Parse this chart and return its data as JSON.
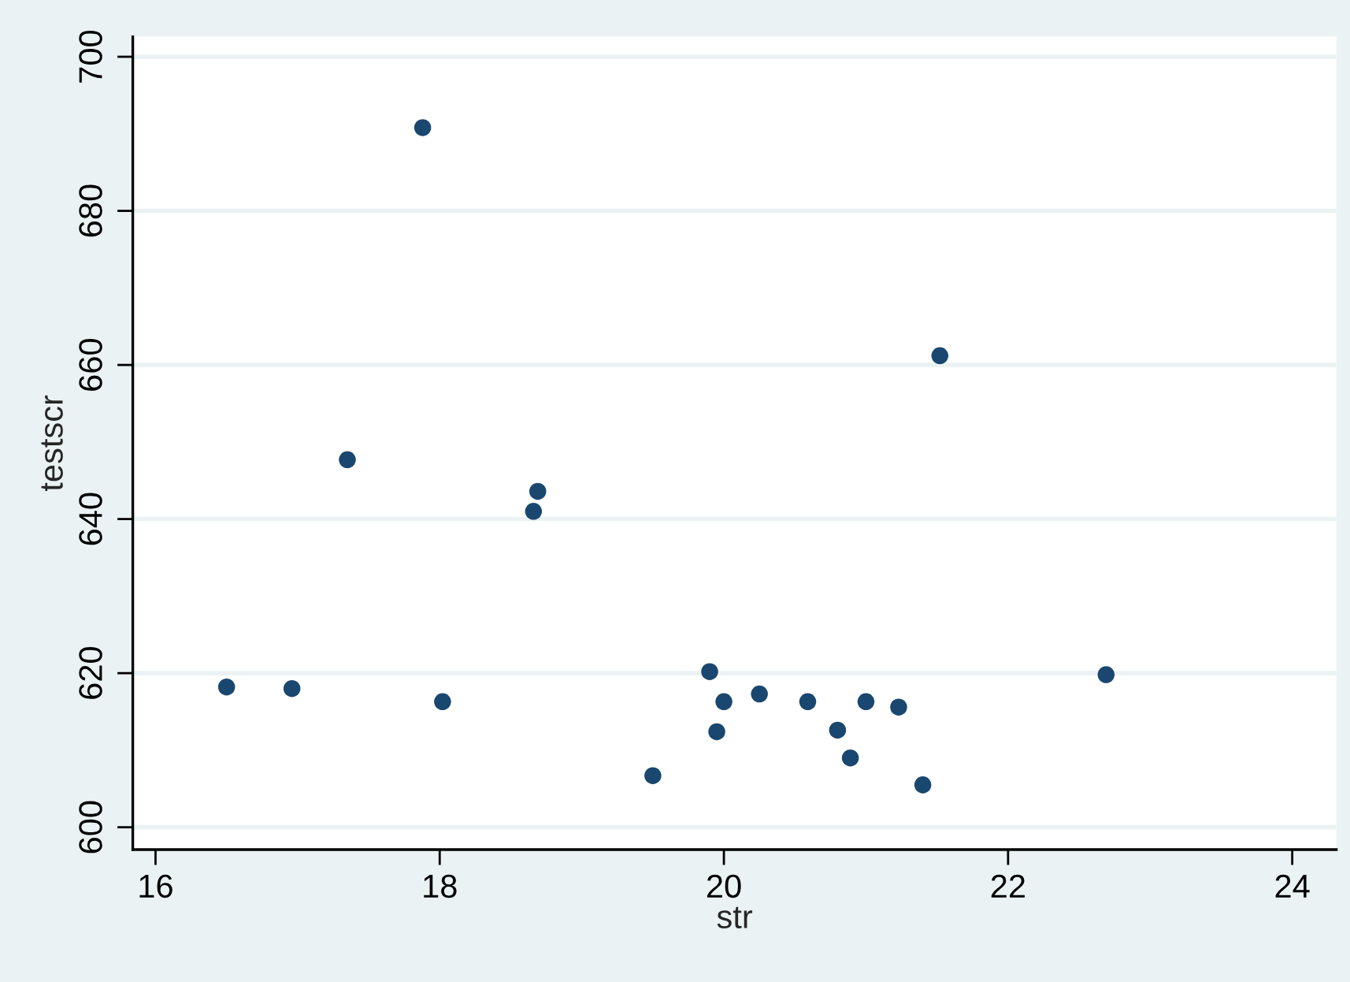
{
  "chart_data": {
    "type": "scatter",
    "xlabel": "str",
    "ylabel": "testscr",
    "x": [
      16.5,
      16.96,
      17.35,
      17.88,
      18.02,
      18.66,
      18.69,
      19.5,
      19.9,
      19.95,
      20.0,
      20.25,
      20.59,
      20.8,
      20.89,
      21.0,
      21.23,
      21.4,
      21.52,
      22.69
    ],
    "values": [
      618.2,
      618.0,
      647.7,
      690.8,
      616.3,
      641.0,
      643.6,
      606.7,
      620.2,
      612.4,
      616.3,
      617.3,
      616.3,
      612.6,
      609.0,
      616.3,
      615.6,
      605.5,
      661.2,
      619.8
    ],
    "color": "#1a476f",
    "marker": "circle",
    "xlim": [
      15.84,
      24.31
    ],
    "ylim": [
      597.1,
      702.6
    ],
    "xticks": [
      16,
      18,
      20,
      22,
      24
    ],
    "yticks": [
      600,
      620,
      640,
      660,
      680,
      700
    ],
    "grid": "y"
  }
}
